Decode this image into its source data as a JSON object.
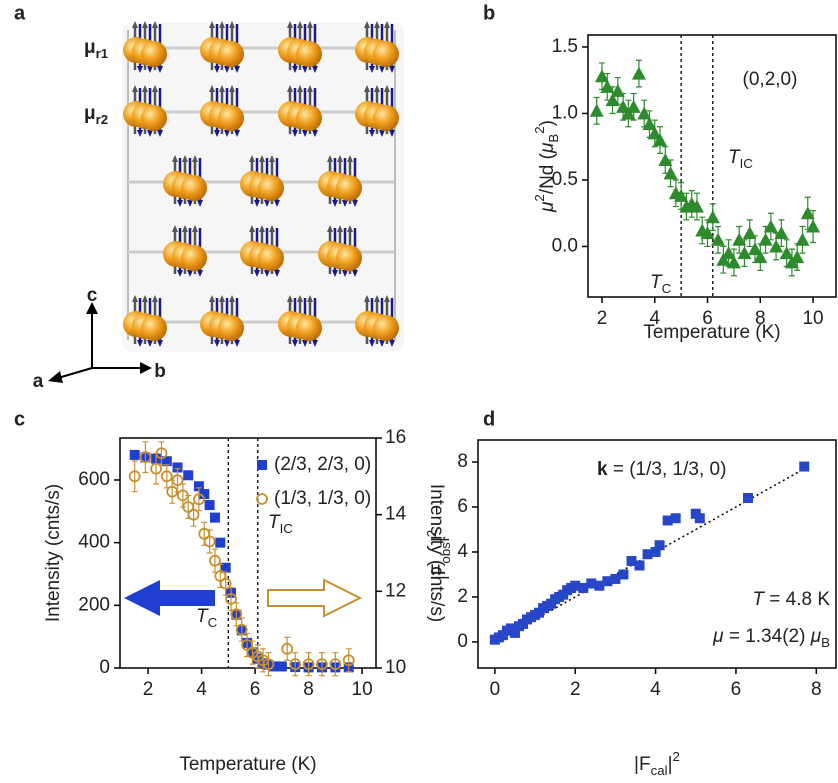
{
  "panel_labels": [
    "a",
    "b",
    "c",
    "d"
  ],
  "structure": {
    "mu_r1": [
      {
        "text": "μ",
        "style": "bold"
      },
      {
        "text": "r1",
        "style": "sub"
      }
    ],
    "mu_r2": [
      {
        "text": "μ",
        "style": "bold"
      },
      {
        "text": "r2",
        "style": "sub"
      }
    ],
    "axis_c": "c",
    "axis_b": "b",
    "axis_a": "a"
  },
  "chart_data": [
    {
      "type": "scatter",
      "xlabel": [
        {
          "text": "Temperature (K)"
        }
      ],
      "ylabel": [
        {
          "text": "μ",
          "style": "italic"
        },
        {
          "text": "2",
          "style": "sup"
        },
        {
          "text": "/Nd ("
        },
        {
          "text": "μ",
          "style": "italic"
        },
        {
          "text": "B",
          "style": "sub"
        },
        {
          "text": "2",
          "style": "sup"
        },
        {
          "text": ")"
        }
      ],
      "xlim": [
        1.47,
        10.87
      ],
      "ylim": [
        -0.38,
        1.59
      ],
      "xticks": [
        2,
        4,
        6,
        8,
        10
      ],
      "yticks": [
        {
          "value": 0,
          "label": "0.0"
        },
        0.5,
        {
          "value": 1,
          "label": "1.0"
        },
        1.5
      ],
      "vlines": [
        5.0,
        6.2
      ],
      "annotations": [
        [
          {
            "text": "(0,2,0)"
          }
        ],
        [
          {
            "text": "T",
            "style": "italic"
          },
          {
            "text": "IC",
            "style": "sub"
          }
        ],
        [
          {
            "text": "T",
            "style": "italic"
          },
          {
            "text": "C",
            "style": "sub"
          }
        ]
      ],
      "series": [
        {
          "color": "#2d8a2d",
          "marker": "triangle",
          "x": [
            1.8,
            2.0,
            2.2,
            2.4,
            2.6,
            2.8,
            3.0,
            3.2,
            3.4,
            3.6,
            3.8,
            4.0,
            4.2,
            4.4,
            4.6,
            4.8,
            5.0,
            5.2,
            5.4,
            5.6,
            5.8,
            6.0,
            6.2,
            6.4,
            6.6,
            6.8,
            7.0,
            7.2,
            7.4,
            7.6,
            7.8,
            8.0,
            8.2,
            8.4,
            8.6,
            8.8,
            9.0,
            9.2,
            9.4,
            9.6,
            9.8,
            10.0
          ],
          "values": [
            1.02,
            1.28,
            1.2,
            1.1,
            1.17,
            1.05,
            1.0,
            1.05,
            1.3,
            1.0,
            0.92,
            0.85,
            0.8,
            0.65,
            0.55,
            0.4,
            0.38,
            0.3,
            0.32,
            0.3,
            0.12,
            0.1,
            0.22,
            0.05,
            -0.1,
            -0.05,
            -0.12,
            0.05,
            -0.05,
            0.1,
            -0.02,
            -0.08,
            0.05,
            0.15,
            0.0,
            0.1,
            -0.05,
            -0.12,
            -0.08,
            0.05,
            0.25,
            0.15
          ],
          "errors": [
            0.1,
            0.1,
            0.1,
            0.1,
            0.1,
            0.1,
            0.1,
            0.1,
            0.1,
            0.1,
            0.1,
            0.1,
            0.1,
            0.1,
            0.1,
            0.1,
            0.1,
            0.1,
            0.1,
            0.1,
            0.1,
            0.1,
            0.1,
            0.1,
            0.1,
            0.1,
            0.1,
            0.1,
            0.1,
            0.1,
            0.1,
            0.1,
            0.1,
            0.1,
            0.1,
            0.1,
            0.1,
            0.1,
            0.1,
            0.1,
            0.12,
            0.12
          ]
        }
      ]
    },
    {
      "type": "scatter",
      "xlabel": [
        {
          "text": "Temperature (K)"
        }
      ],
      "ylabel": [
        {
          "text": "Intensity (cnts/s)"
        }
      ],
      "y2label": [
        {
          "text": "Intensity (cnts/s)"
        }
      ],
      "xlim": [
        0.95,
        10.52
      ],
      "ylim": [
        0,
        734
      ],
      "y2lim": [
        10,
        16
      ],
      "xticks": [
        2,
        4,
        6,
        8,
        10
      ],
      "yticks": [
        0,
        200,
        400,
        600
      ],
      "y2ticks": [
        10,
        12,
        14,
        16
      ],
      "vlines": [
        5.0,
        6.1
      ],
      "annotations": [
        [
          {
            "text": "T",
            "style": "italic"
          },
          {
            "text": "IC",
            "style": "sub"
          }
        ],
        [
          {
            "text": "T",
            "style": "italic"
          },
          {
            "text": "C",
            "style": "sub"
          }
        ]
      ],
      "series": [
        {
          "name": "(2/3, 2/3, 0)",
          "color": "#1f3fd1",
          "marker": "square",
          "x": [
            1.5,
            1.9,
            2.3,
            2.7,
            3.1,
            3.5,
            3.9,
            4.1,
            4.3,
            4.5,
            4.7,
            4.9,
            5.1,
            5.3,
            5.5,
            5.7,
            5.9,
            6.1,
            6.3,
            6.5,
            6.7,
            7.0,
            7.5,
            8.0,
            8.5,
            9.0,
            9.5
          ],
          "values": [
            680,
            672,
            668,
            660,
            640,
            615,
            580,
            555,
            520,
            480,
            400,
            320,
            240,
            170,
            120,
            80,
            50,
            30,
            15,
            10,
            5,
            5,
            3,
            2,
            2,
            2,
            2
          ]
        },
        {
          "name": "(1/3, 1/3, 0)",
          "color": "#c89030",
          "marker": "circle-open",
          "axis": "y2",
          "x": [
            1.5,
            1.9,
            2.3,
            2.5,
            2.7,
            2.9,
            3.1,
            3.3,
            3.5,
            3.7,
            3.9,
            4.1,
            4.3,
            4.5,
            4.7,
            4.9,
            5.1,
            5.3,
            5.5,
            5.7,
            5.9,
            6.1,
            6.3,
            6.5,
            7.2,
            7.5,
            8.0,
            8.5,
            9.0,
            9.5
          ],
          "values": [
            15.0,
            15.5,
            15.2,
            15.6,
            15.0,
            14.6,
            14.9,
            14.5,
            14.2,
            14.0,
            14.4,
            13.5,
            13.3,
            12.8,
            12.4,
            12.2,
            11.8,
            11.4,
            11.0,
            10.6,
            10.4,
            10.3,
            10.2,
            10.1,
            10.5,
            10.1,
            10.1,
            10.1,
            10.1,
            10.2
          ],
          "errors": [
            0.4,
            0.4,
            0.4,
            0.3,
            0.3,
            0.3,
            0.3,
            0.3,
            0.3,
            0.3,
            0.3,
            0.3,
            0.3,
            0.3,
            0.3,
            0.3,
            0.3,
            0.3,
            0.3,
            0.3,
            0.3,
            0.3,
            0.3,
            0.3,
            0.3,
            0.3,
            0.3,
            0.3,
            0.3,
            0.3
          ]
        }
      ]
    },
    {
      "type": "scatter",
      "xlabel": [
        {
          "text": "|F"
        },
        {
          "text": "cal",
          "style": "sub"
        },
        {
          "text": "|"
        },
        {
          "text": "2",
          "style": "sup"
        }
      ],
      "ylabel": [
        {
          "text": "|F"
        },
        {
          "text": "obs",
          "style": "sub"
        },
        {
          "text": "|"
        },
        {
          "text": "2",
          "style": "sup"
        }
      ],
      "xlim": [
        -0.42,
        8.49
      ],
      "ylim": [
        -1.16,
        8.98
      ],
      "xticks": [
        0,
        2,
        4,
        6,
        8
      ],
      "yticks": [
        0,
        2,
        4,
        6,
        8
      ],
      "fit_line": {
        "x": [
          0,
          7.8
        ],
        "y": [
          0,
          7.8
        ]
      },
      "annotations": [
        [
          {
            "text": "k",
            "style": "bold"
          },
          {
            "text": " = (1/3, 1/3, 0)"
          }
        ],
        [
          {
            "text": "T",
            "style": "italic"
          },
          {
            "text": " = 4.8 K"
          }
        ],
        [
          {
            "text": "μ",
            "style": "italic"
          },
          {
            "text": " = 1.34(2) "
          },
          {
            "text": "μ",
            "style": "italic"
          },
          {
            "text": "B",
            "style": "sub"
          }
        ]
      ],
      "series": [
        {
          "color": "#2747c8",
          "marker": "square",
          "x": [
            0,
            0.1,
            0.2,
            0.3,
            0.4,
            0.5,
            0.6,
            0.7,
            0.8,
            0.9,
            1.0,
            1.1,
            1.2,
            1.3,
            1.4,
            1.5,
            1.6,
            1.7,
            1.8,
            1.9,
            2.0,
            2.2,
            2.4,
            2.6,
            2.8,
            3.0,
            3.2,
            3.4,
            3.6,
            3.8,
            4.0,
            4.1,
            4.3,
            4.5,
            5.0,
            5.1,
            6.3,
            7.7
          ],
          "values": [
            0.1,
            0.2,
            0.3,
            0.5,
            0.6,
            0.4,
            0.7,
            0.8,
            1.0,
            1.1,
            1.2,
            1.3,
            1.5,
            1.6,
            1.7,
            1.9,
            2.0,
            2.1,
            2.3,
            2.4,
            2.5,
            2.4,
            2.6,
            2.5,
            2.7,
            2.8,
            3.0,
            3.6,
            3.4,
            3.9,
            4.0,
            4.3,
            5.4,
            5.5,
            5.7,
            5.5,
            6.4,
            7.8
          ]
        }
      ]
    }
  ]
}
